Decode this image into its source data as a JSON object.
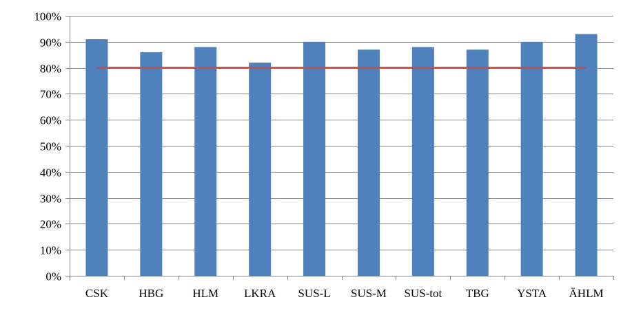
{
  "chart_data": {
    "type": "bar",
    "categories": [
      "CSK",
      "HBG",
      "HLM",
      "LKRA",
      "SUS-L",
      "SUS-M",
      "SUS-tot",
      "TBG",
      "YSTA",
      "ÄHLM"
    ],
    "series": [
      {
        "values": [
          91,
          86,
          88,
          82,
          90,
          87,
          88,
          87,
          90,
          93
        ]
      }
    ],
    "target_line": {
      "value": 80,
      "color": "#c0504d"
    },
    "ylim": [
      0,
      100
    ],
    "yticks": [
      0,
      10,
      20,
      30,
      40,
      50,
      60,
      70,
      80,
      90,
      100
    ],
    "ytick_labels": [
      "0%",
      "10%",
      "20%",
      "30%",
      "40%",
      "50%",
      "60%",
      "70%",
      "80%",
      "90%",
      "100%"
    ],
    "grid": true,
    "legend": "none",
    "bar_color": "#4f81bd",
    "grid_color": "#868686",
    "title": "",
    "xlabel": "",
    "ylabel": ""
  }
}
